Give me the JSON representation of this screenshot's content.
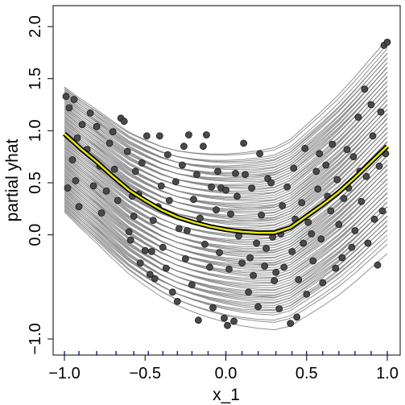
{
  "chart_data": {
    "type": "line",
    "title": "",
    "xlabel": "x_1",
    "ylabel": "partial yhat",
    "xlim": [
      -1.0,
      1.0
    ],
    "ylim": [
      -1.12,
      2.2
    ],
    "x_ticks": [
      -1.0,
      -0.5,
      0.0,
      0.5,
      1.0
    ],
    "x_tick_labels": [
      "−1.0",
      "−0.5",
      "0.0",
      "0.5",
      "1.0"
    ],
    "y_ticks": [
      -1.0,
      0.0,
      0.5,
      1.0,
      1.5,
      2.0
    ],
    "y_tick_labels": [
      "−1.0",
      "0.0",
      "0.5",
      "1.0",
      "1.5",
      "2.0"
    ],
    "rug_x": [
      -1.0,
      -0.91,
      -0.8,
      -0.68,
      -0.57,
      -0.48,
      -0.39,
      -0.3,
      -0.21,
      -0.11,
      0.0,
      0.1,
      0.2,
      0.31,
      0.41,
      0.5,
      0.6,
      0.7,
      0.8,
      0.9,
      1.0
    ],
    "individual_curves": {
      "count": 100,
      "x_start": -1.0,
      "x_end": 1.0,
      "y_at_start_range": [
        0.22,
        1.42
      ],
      "y_at_end_range": [
        -0.18,
        1.95
      ],
      "shape": "convex, minimum near x = 0.3",
      "color": "#7f7f7f"
    },
    "series": [
      {
        "x": [
          -1.0,
          -0.9,
          -0.8,
          -0.7,
          -0.6,
          -0.5,
          -0.4,
          -0.3,
          -0.2,
          -0.1,
          0.0,
          0.1,
          0.2,
          0.3,
          0.4,
          0.5,
          0.6,
          0.7,
          0.8,
          0.9,
          1.0
        ],
        "y": [
          0.97,
          0.83,
          0.7,
          0.56,
          0.43,
          0.33,
          0.24,
          0.17,
          0.12,
          0.08,
          0.05,
          0.03,
          0.02,
          0.02,
          0.07,
          0.18,
          0.29,
          0.41,
          0.55,
          0.7,
          0.85
        ],
        "color": "#e8e800"
      }
    ],
    "points": [
      [
        -0.99,
        1.33
      ],
      [
        -0.98,
        0.45
      ],
      [
        -0.97,
        1.22
      ],
      [
        -0.95,
        0.72
      ],
      [
        -0.94,
        1.3
      ],
      [
        -0.92,
        0.93
      ],
      [
        -0.93,
        0.52
      ],
      [
        -0.91,
        0.27
      ],
      [
        -0.89,
        1.06
      ],
      [
        -0.86,
        0.82
      ],
      [
        -0.84,
        1.17
      ],
      [
        -0.82,
        0.47
      ],
      [
        -0.8,
        1.04
      ],
      [
        -0.78,
        0.66
      ],
      [
        -0.77,
        0.21
      ],
      [
        -0.74,
        0.42
      ],
      [
        -0.72,
        0.88
      ],
      [
        -0.7,
        0.99
      ],
      [
        -0.69,
        0.63
      ],
      [
        -0.67,
        0.33
      ],
      [
        -0.65,
        1.12
      ],
      [
        -0.63,
        1.09
      ],
      [
        -0.61,
        0.8
      ],
      [
        -0.6,
        0.03
      ],
      [
        -0.59,
        -0.05
      ],
      [
        -0.58,
        0.37
      ],
      [
        -0.57,
        0.18
      ],
      [
        -0.56,
        0.61
      ],
      [
        -0.54,
        0.39
      ],
      [
        -0.53,
        -0.27
      ],
      [
        -0.52,
        0.69
      ],
      [
        -0.5,
        -0.15
      ],
      [
        -0.49,
        0.95
      ],
      [
        -0.47,
        -0.38
      ],
      [
        -0.46,
        -0.16
      ],
      [
        -0.45,
        0.14
      ],
      [
        -0.44,
        -0.42
      ],
      [
        -0.42,
        0.27
      ],
      [
        -0.41,
        0.95
      ],
      [
        -0.4,
        0.47
      ],
      [
        -0.39,
        -0.12
      ],
      [
        -0.37,
        -0.32
      ],
      [
        -0.36,
        0.77
      ],
      [
        -0.35,
        0.33
      ],
      [
        -0.33,
        -0.55
      ],
      [
        -0.31,
        0.51
      ],
      [
        -0.3,
        -0.64
      ],
      [
        -0.29,
        0.06
      ],
      [
        -0.27,
        0.67
      ],
      [
        -0.26,
        0.85
      ],
      [
        -0.25,
        -0.23
      ],
      [
        -0.24,
        0.04
      ],
      [
        -0.23,
        0.96
      ],
      [
        -0.21,
        -0.48
      ],
      [
        -0.2,
        0.34
      ],
      [
        -0.18,
        0.58
      ],
      [
        -0.17,
        -0.82
      ],
      [
        -0.16,
        0.16
      ],
      [
        -0.14,
        0.85
      ],
      [
        -0.13,
        -0.09
      ],
      [
        -0.12,
        0.96
      ],
      [
        -0.1,
        -0.31
      ],
      [
        -0.09,
        0.46
      ],
      [
        -0.08,
        -0.7
      ],
      [
        -0.06,
        0.24
      ],
      [
        -0.05,
        0.61
      ],
      [
        -0.04,
        -0.17
      ],
      [
        -0.03,
        0.45
      ],
      [
        -0.01,
        -0.8
      ],
      [
        0.0,
        0.43
      ],
      [
        0.01,
        -0.87
      ],
      [
        0.02,
        -0.33
      ],
      [
        0.03,
        0.2
      ],
      [
        0.05,
        -0.83
      ],
      [
        0.06,
        0.59
      ],
      [
        0.07,
        0.37
      ],
      [
        0.08,
        -0.01
      ],
      [
        0.1,
        -0.27
      ],
      [
        0.11,
        0.88
      ],
      [
        0.12,
        0.58
      ],
      [
        0.14,
        -0.55
      ],
      [
        0.15,
        -0.22
      ],
      [
        0.16,
        0.45
      ],
      [
        0.17,
        -0.39
      ],
      [
        0.19,
        -0.08
      ],
      [
        0.2,
        -0.69
      ],
      [
        0.21,
        0.78
      ],
      [
        0.22,
        0.19
      ],
      [
        0.24,
        -0.3
      ],
      [
        0.25,
        -0.13
      ],
      [
        0.26,
        0.54
      ],
      [
        0.28,
        0.5
      ],
      [
        0.29,
        -0.02
      ],
      [
        0.3,
        -0.44
      ],
      [
        0.31,
        -0.36
      ],
      [
        0.33,
        -0.71
      ],
      [
        0.34,
        0.01
      ],
      [
        0.35,
        0.28
      ],
      [
        0.36,
        -0.31
      ],
      [
        0.38,
        0.46
      ],
      [
        0.4,
        -0.85
      ],
      [
        0.41,
        -0.16
      ],
      [
        0.42,
        0.64
      ],
      [
        0.43,
        0.15
      ],
      [
        0.44,
        -0.79
      ],
      [
        0.45,
        -0.43
      ],
      [
        0.47,
        0.31
      ],
      [
        0.48,
        -0.08
      ],
      [
        0.49,
        0.83
      ],
      [
        0.5,
        -0.57
      ],
      [
        0.51,
        0.12
      ],
      [
        0.53,
        0.01
      ],
      [
        0.54,
        -0.25
      ],
      [
        0.56,
        0.61
      ],
      [
        0.57,
        0.44
      ],
      [
        0.58,
        0.78
      ],
      [
        0.59,
        -0.04
      ],
      [
        0.6,
        -0.46
      ],
      [
        0.62,
        0.67
      ],
      [
        0.63,
        0.37
      ],
      [
        0.65,
        0.23
      ],
      [
        0.66,
        0.87
      ],
      [
        0.68,
        -0.32
      ],
      [
        0.69,
        0.53
      ],
      [
        0.7,
        0.1
      ],
      [
        0.72,
        -0.22
      ],
      [
        0.73,
        0.35
      ],
      [
        0.75,
        0.82
      ],
      [
        0.76,
        0.45
      ],
      [
        0.78,
        -0.12
      ],
      [
        0.79,
        0.75
      ],
      [
        0.8,
        0.04
      ],
      [
        0.82,
        1.13
      ],
      [
        0.83,
        0.61
      ],
      [
        0.84,
        0.32
      ],
      [
        0.86,
        1.4
      ],
      [
        0.87,
        0.56
      ],
      [
        0.88,
        -0.08
      ],
      [
        0.9,
        1.25
      ],
      [
        0.91,
        0.95
      ],
      [
        0.92,
        0.15
      ],
      [
        0.94,
        -0.29
      ],
      [
        0.95,
        0.66
      ],
      [
        0.96,
        1.18
      ],
      [
        0.97,
        0.23
      ],
      [
        0.98,
        1.82
      ],
      [
        0.99,
        0.78
      ],
      [
        1.0,
        1.85
      ]
    ],
    "grid": false,
    "legend": "none"
  }
}
